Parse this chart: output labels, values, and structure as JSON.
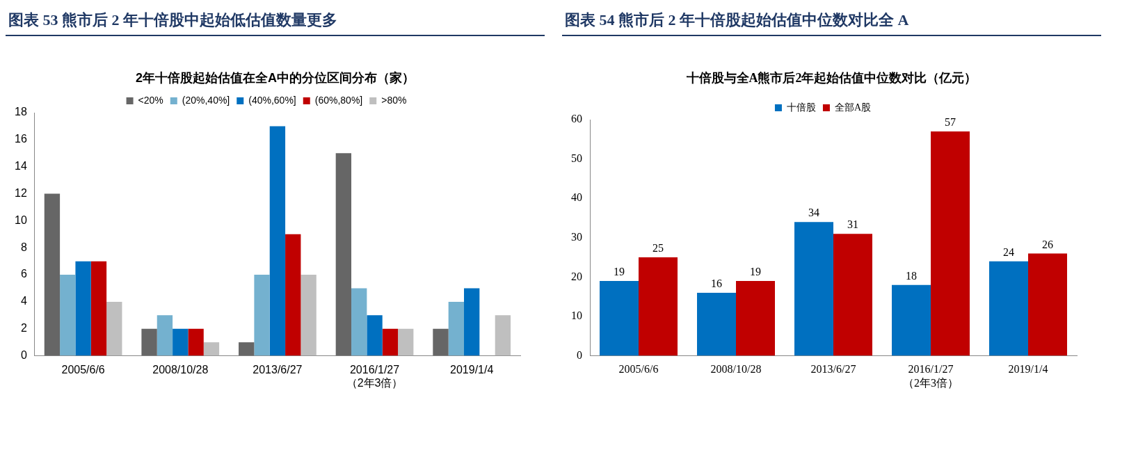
{
  "chart_data": [
    {
      "type": "bar",
      "title": "图表 53 熊市后 2 年十倍股中起始低估值数量更多",
      "subtitle": "2年十倍股起始估值在全A中的分位区间分布（家）",
      "categories": [
        "2005/6/6",
        "2008/10/28",
        "2013/6/27",
        "2016/1/27\n（2年3倍）",
        "2019/1/4"
      ],
      "series": [
        {
          "name": "<20%",
          "color": "#666666",
          "values": [
            12,
            2,
            1,
            15,
            2
          ]
        },
        {
          "name": "(20%,40%]",
          "color": "#74b1cf",
          "values": [
            6,
            3,
            6,
            5,
            4
          ]
        },
        {
          "name": "(40%,60%]",
          "color": "#0070c0",
          "values": [
            7,
            2,
            17,
            3,
            5
          ]
        },
        {
          "name": "(60%,80%]",
          "color": "#c00000",
          "values": [
            7,
            2,
            9,
            2,
            null
          ]
        },
        {
          "name": ">80%",
          "color": "#bfbfbf",
          "values": [
            4,
            1,
            6,
            2,
            3
          ]
        }
      ],
      "ylim": [
        0,
        18
      ],
      "yticks": [
        0,
        2,
        4,
        6,
        8,
        10,
        12,
        14,
        16,
        18
      ],
      "grid": false,
      "legend": "top"
    },
    {
      "type": "bar",
      "title": "图表 54 熊市后 2 年十倍股起始估值中位数对比全 A",
      "subtitle": "十倍股与全A熊市后2年起始估值中位数对比（亿元）",
      "categories": [
        "2005/6/6",
        "2008/10/28",
        "2013/6/27",
        "2016/1/27\n（2年3倍）",
        "2019/1/4"
      ],
      "series": [
        {
          "name": "十倍股",
          "color": "#0070c0",
          "values": [
            19,
            16,
            34,
            18,
            24
          ]
        },
        {
          "name": "全部A股",
          "color": "#c00000",
          "values": [
            25,
            19,
            31,
            57,
            26
          ]
        }
      ],
      "ylim": [
        0,
        60
      ],
      "yticks": [
        0,
        10,
        20,
        30,
        40,
        50,
        60
      ],
      "grid": false,
      "legend": "top",
      "data_labels": true
    }
  ]
}
